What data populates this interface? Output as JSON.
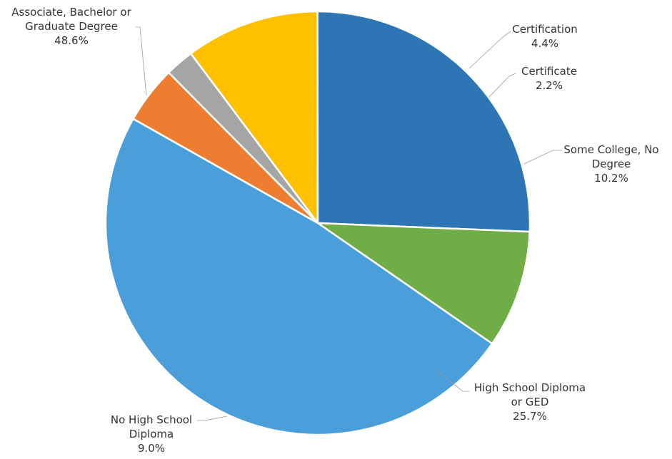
{
  "chart_data": {
    "type": "pie",
    "title": "",
    "legend": "none",
    "start_angle_deg": -60.5,
    "direction": "clockwise",
    "slices": [
      {
        "label": "Certification",
        "value_text": "4.4%",
        "value": 4.4,
        "color": "#ED7D31",
        "label_lines": [
          "Certification",
          "4.4%"
        ]
      },
      {
        "label": "Certificate",
        "value_text": "2.2%",
        "value": 2.2,
        "color": "#A5A5A5",
        "label_lines": [
          "Certificate",
          "2.2%"
        ]
      },
      {
        "label": "Some College, No Degree",
        "value_text": "10.2%",
        "value": 10.2,
        "color": "#FFC000",
        "label_lines": [
          "Some College, No",
          "Degree",
          "10.2%"
        ]
      },
      {
        "label": "High School Diploma or GED",
        "value_text": "25.7%",
        "value": 25.7,
        "color": "#2E75B6",
        "label_lines": [
          "High School Diploma",
          "or GED",
          "25.7%"
        ]
      },
      {
        "label": "No High School Diploma",
        "value_text": "9.0%",
        "value": 9.0,
        "color": "#70AD47",
        "label_lines": [
          "No High School",
          "Diploma",
          "9.0%"
        ]
      },
      {
        "label": "Associate, Bachelor or Graduate Degree",
        "value_text": "48.6%",
        "value": 48.6,
        "color": "#4A9FDA",
        "label_lines": [
          "Associate, Bachelor or",
          "Graduate Degree",
          "48.6%"
        ]
      }
    ]
  }
}
